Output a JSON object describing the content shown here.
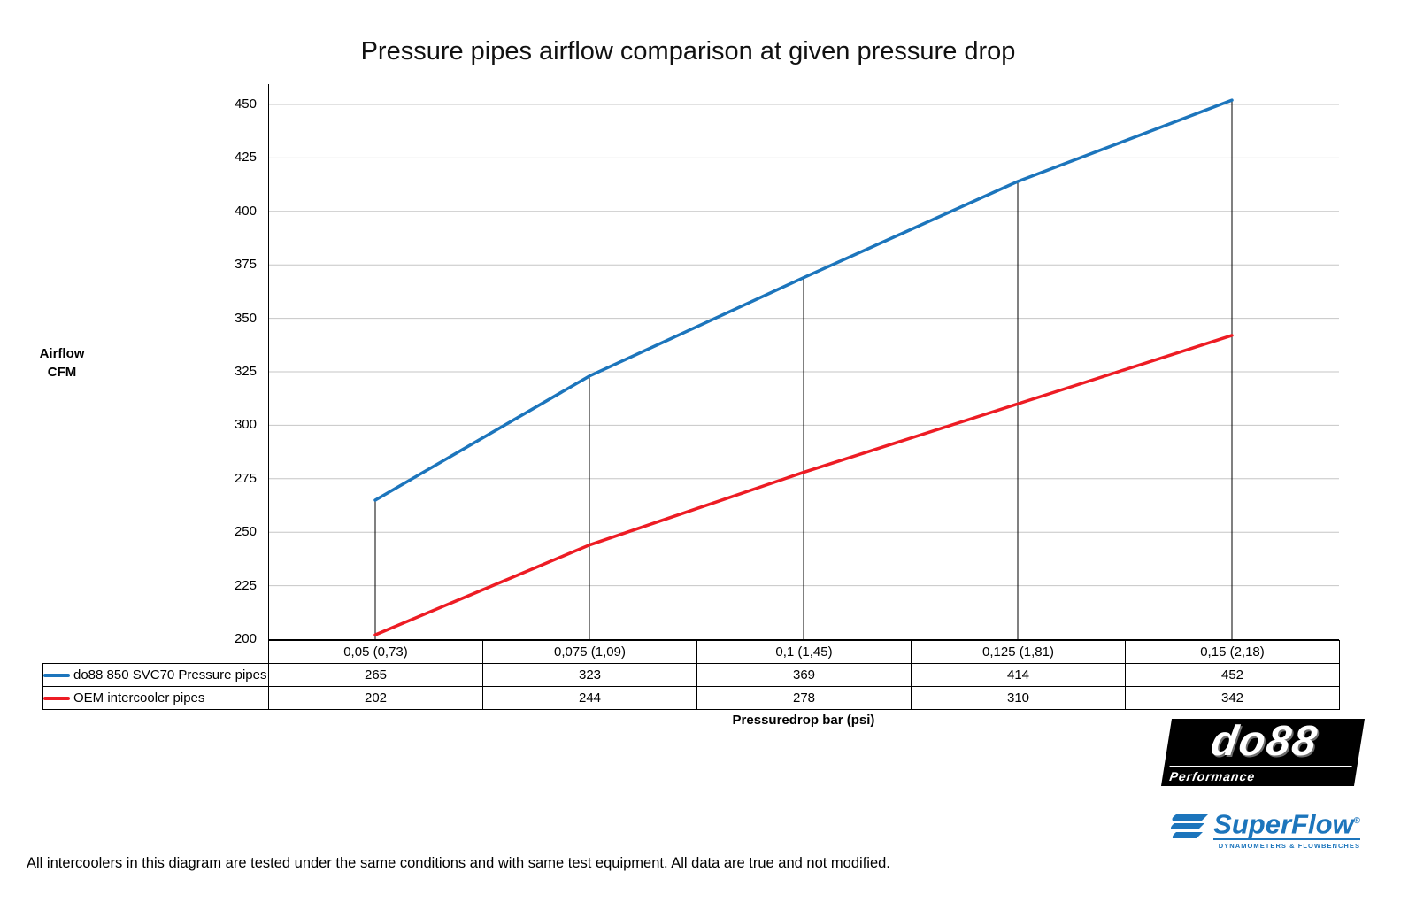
{
  "title": "Pressure pipes airflow comparison at given pressure drop",
  "ylabel_line1": "Airflow",
  "ylabel_line2": "CFM",
  "xlabel": "Pressuredrop bar (psi)",
  "footnote": "All intercoolers in this diagram are tested under the same conditions and with same test equipment. All data are true and not modified.",
  "chart_data": {
    "type": "line",
    "title": "Pressure pipes airflow comparison at given pressure drop",
    "xlabel": "Pressuredrop bar (psi)",
    "ylabel": "Airflow CFM",
    "categories": [
      "0,05 (0,73)",
      "0,075 (1,09)",
      "0,1 (1,45)",
      "0,125 (1,81)",
      "0,15 (2,18)"
    ],
    "series": [
      {
        "name": "do88 850 SVC70 Pressure pipes",
        "color": "#1C75BC",
        "values": [
          265,
          323,
          369,
          414,
          452
        ]
      },
      {
        "name": "OEM intercooler pipes",
        "color": "#ED1C24",
        "values": [
          202,
          244,
          278,
          310,
          342
        ]
      }
    ],
    "ylim": [
      200,
      450
    ],
    "ytick_step": 25,
    "grid": true,
    "gridline_color": "#C6C6C6",
    "axis_color": "#000000",
    "legend_position": "table-left"
  },
  "logos": {
    "do88": {
      "text": "do88",
      "subtext": "Performance"
    },
    "superflow": {
      "text": "SuperFlow",
      "reg": "®",
      "subtext": "DYNAMOMETERS & FLOWBENCHES"
    }
  }
}
